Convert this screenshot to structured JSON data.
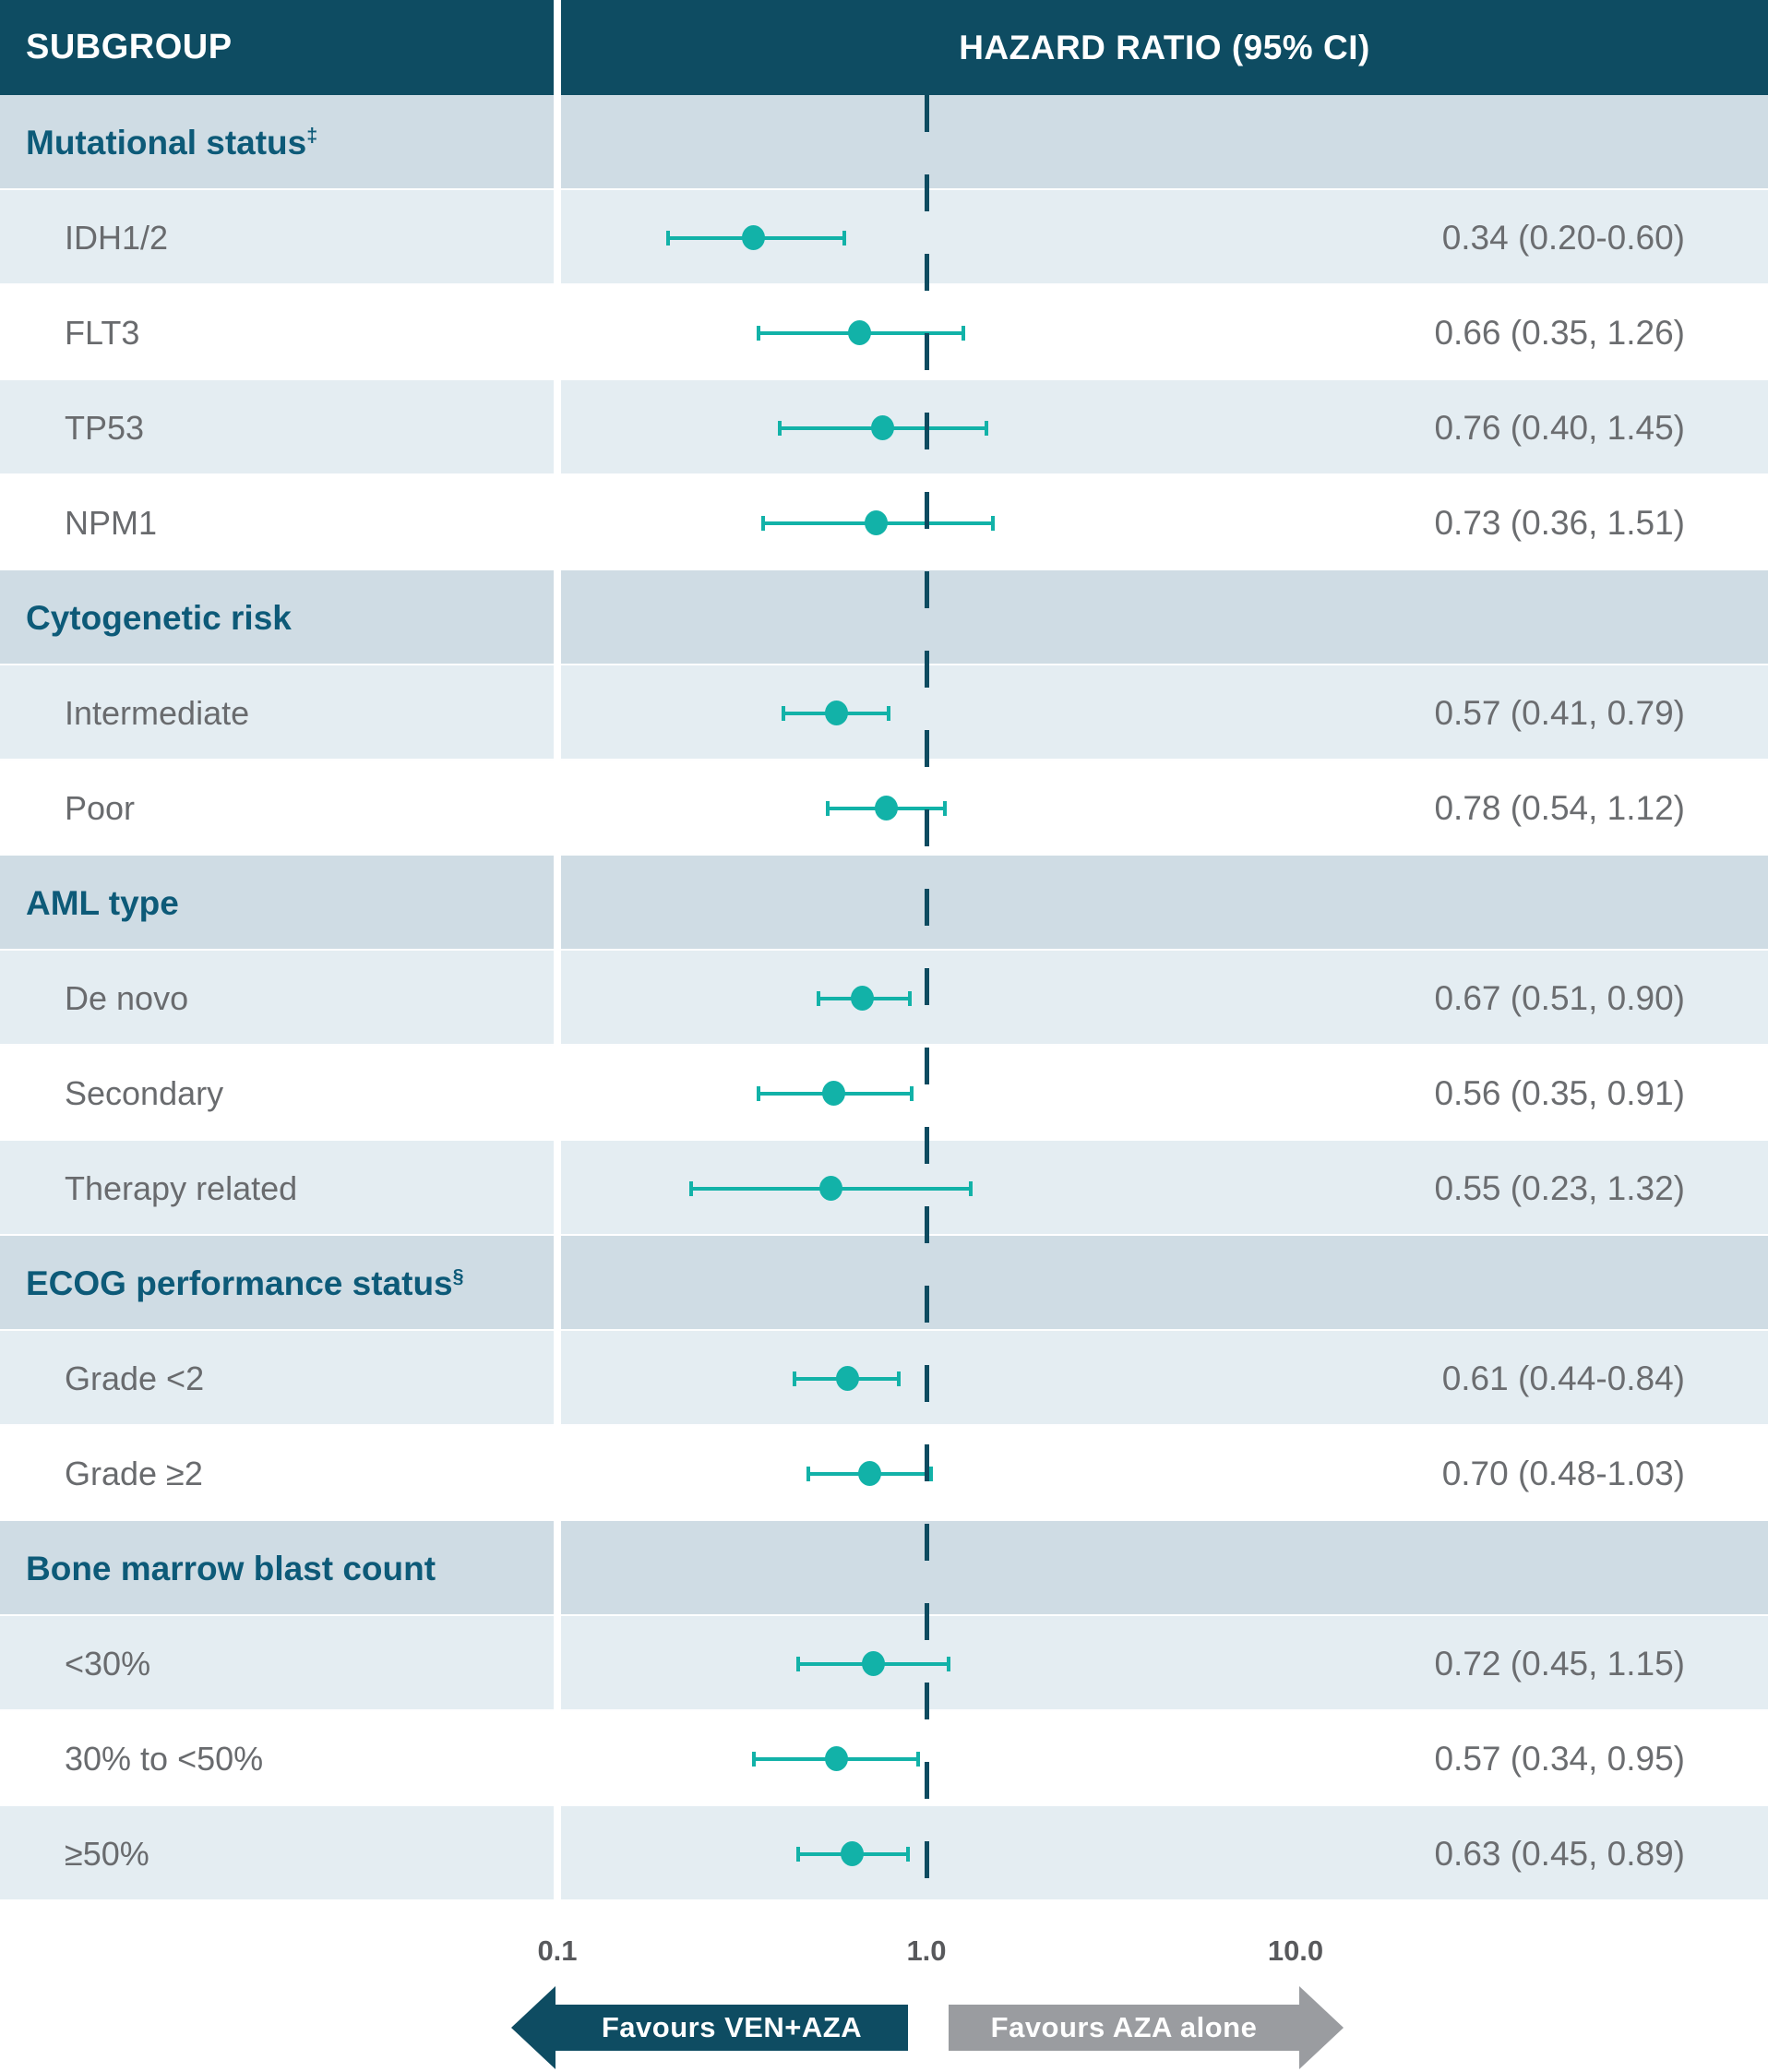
{
  "header": {
    "subgroup": "SUBGROUP",
    "hazard": "HAZARD RATIO (95% CI)"
  },
  "colors": {
    "header_bg": "#0e4c62",
    "section_bg": "#cfdce4",
    "alt_bg": "#e4edf2",
    "section_text": "#0d5a78",
    "label_text": "#696b6e",
    "value_text": "#6b6d70",
    "axis_text": "#58595c",
    "marker_teal": "#12b2a8",
    "ref_line": "#0d4b60",
    "arrow_gray": "#9a9ca0"
  },
  "chart_data": {
    "type": "forest",
    "x_axis": {
      "scale": "log",
      "ticks": [
        {
          "label": "0.1",
          "value": 0.1
        },
        {
          "label": "1.0",
          "value": 1.0
        },
        {
          "label": "10.0",
          "value": 10.0
        }
      ],
      "reference_line": 1.0
    },
    "rows": [
      {
        "kind": "section",
        "label": "Mutational status",
        "sup": "‡"
      },
      {
        "kind": "data",
        "label": "IDH1/2",
        "hr": 0.34,
        "ci": [
          0.2,
          0.6
        ],
        "ci_text": "0.34 (0.20-0.60)"
      },
      {
        "kind": "data",
        "label": "FLT3",
        "hr": 0.66,
        "ci": [
          0.35,
          1.26
        ],
        "ci_text": "0.66 (0.35, 1.26)"
      },
      {
        "kind": "data",
        "label": "TP53",
        "hr": 0.76,
        "ci": [
          0.4,
          1.45
        ],
        "ci_text": "0.76 (0.40, 1.45)"
      },
      {
        "kind": "data",
        "label": "NPM1",
        "hr": 0.73,
        "ci": [
          0.36,
          1.51
        ],
        "ci_text": "0.73 (0.36, 1.51)"
      },
      {
        "kind": "section",
        "label": "Cytogenetic risk"
      },
      {
        "kind": "data",
        "label": "Intermediate",
        "hr": 0.57,
        "ci": [
          0.41,
          0.79
        ],
        "ci_text": "0.57 (0.41, 0.79)"
      },
      {
        "kind": "data",
        "label": "Poor",
        "hr": 0.78,
        "ci": [
          0.54,
          1.12
        ],
        "ci_text": "0.78 (0.54, 1.12)"
      },
      {
        "kind": "section",
        "label": "AML type"
      },
      {
        "kind": "data",
        "label": "De novo",
        "hr": 0.67,
        "ci": [
          0.51,
          0.9
        ],
        "ci_text": "0.67 (0.51, 0.90)"
      },
      {
        "kind": "data",
        "label": "Secondary",
        "hr": 0.56,
        "ci": [
          0.35,
          0.91
        ],
        "ci_text": "0.56 (0.35, 0.91)"
      },
      {
        "kind": "data",
        "label": "Therapy related",
        "hr": 0.55,
        "ci": [
          0.23,
          1.32
        ],
        "ci_text": "0.55 (0.23, 1.32)"
      },
      {
        "kind": "section",
        "label": "ECOG performance status",
        "sup": "§"
      },
      {
        "kind": "data",
        "label": "Grade <2",
        "hr": 0.61,
        "ci": [
          0.44,
          0.84
        ],
        "ci_text": "0.61 (0.44-0.84)"
      },
      {
        "kind": "data",
        "label": "Grade ≥2",
        "hr": 0.7,
        "ci": [
          0.48,
          1.03
        ],
        "ci_text": "0.70 (0.48-1.03)"
      },
      {
        "kind": "section",
        "label": "Bone marrow blast count"
      },
      {
        "kind": "data",
        "label": "<30%",
        "hr": 0.72,
        "ci": [
          0.45,
          1.15
        ],
        "ci_text": "0.72 (0.45, 1.15)"
      },
      {
        "kind": "data",
        "label": "30% to <50%",
        "hr": 0.57,
        "ci": [
          0.34,
          0.95
        ],
        "ci_text": "0.57 (0.34, 0.95)"
      },
      {
        "kind": "data",
        "label": "≥50%",
        "hr": 0.63,
        "ci": [
          0.45,
          0.89
        ],
        "ci_text": "0.63 (0.45, 0.89)"
      }
    ]
  },
  "footer": {
    "favours_left": "Favours VEN+AZA",
    "favours_right": "Favours AZA alone"
  }
}
